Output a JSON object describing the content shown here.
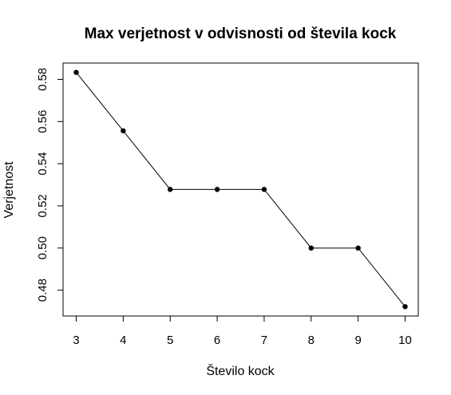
{
  "chart_data": {
    "type": "line",
    "title": "Max verjetnost v odvisnosti od števila kock",
    "xlabel": "Število kock",
    "ylabel": "Verjetnost",
    "x": [
      3,
      4,
      5,
      6,
      7,
      8,
      9,
      10
    ],
    "x_tick_labels": [
      "3",
      "4",
      "5",
      "6",
      "7",
      "8",
      "9",
      "10"
    ],
    "series": [
      {
        "values": [
          0.5833,
          0.5556,
          0.5278,
          0.5278,
          0.5278,
          0.5,
          0.5,
          0.4722
        ]
      }
    ],
    "y_ticks": [
      0.48,
      0.5,
      0.52,
      0.54,
      0.56,
      0.58
    ],
    "y_tick_labels": [
      "0.48",
      "0.50",
      "0.52",
      "0.54",
      "0.56",
      "0.58"
    ],
    "xlim": [
      2.72,
      10.28
    ],
    "ylim": [
      0.46776,
      0.58774
    ],
    "grid": false,
    "line_color": "#000000",
    "point_color": "#000000"
  }
}
